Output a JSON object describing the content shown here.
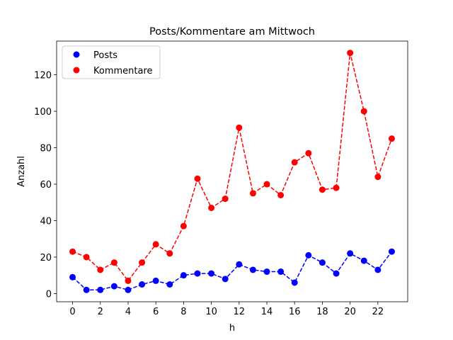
{
  "chart_data": {
    "type": "line",
    "title": "Posts/Kommentare am Mittwoch",
    "x_label": "h",
    "y_label": "Anzahl",
    "x": [
      0,
      1,
      2,
      3,
      4,
      5,
      6,
      7,
      8,
      9,
      10,
      11,
      12,
      13,
      14,
      15,
      16,
      17,
      18,
      19,
      20,
      21,
      22,
      23
    ],
    "series": [
      {
        "name": "Posts",
        "color": "#0000ff",
        "values": [
          9,
          2,
          2,
          4,
          2,
          5,
          7,
          5,
          10,
          11,
          11,
          8,
          16,
          13,
          12,
          12,
          6,
          21,
          17,
          11,
          22,
          18,
          13,
          23
        ]
      },
      {
        "name": "Kommentare",
        "color": "#ff0000",
        "values": [
          23,
          20,
          13,
          17,
          7,
          17,
          27,
          22,
          37,
          63,
          47,
          52,
          91,
          55,
          60,
          54,
          72,
          77,
          57,
          58,
          132,
          100,
          64,
          85
        ]
      }
    ],
    "xlim": [
      -1.15,
      24.15
    ],
    "ylim": [
      -4.5,
      138.5
    ],
    "xticks": [
      0,
      2,
      4,
      6,
      8,
      10,
      12,
      14,
      16,
      18,
      20,
      22
    ],
    "yticks": [
      0,
      20,
      40,
      60,
      80,
      100,
      120
    ],
    "legend": "upper left"
  }
}
